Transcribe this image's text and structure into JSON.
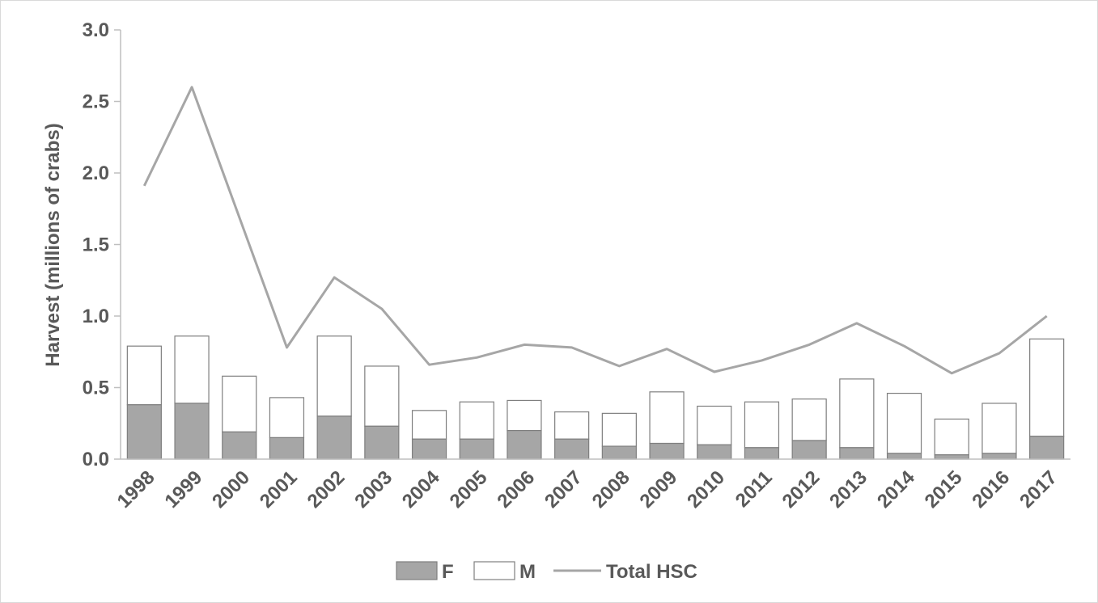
{
  "chart_data": {
    "type": "bar",
    "stacked": true,
    "title": "",
    "xlabel": "",
    "ylabel": "Harvest (millions of crabs)",
    "ylim": [
      0,
      3.0
    ],
    "yticks": [
      "0.0",
      "0.5",
      "1.0",
      "1.5",
      "2.0",
      "2.5",
      "3.0"
    ],
    "yticks_values": [
      0,
      0.5,
      1.0,
      1.5,
      2.0,
      2.5,
      3.0
    ],
    "grid": false,
    "legend_position": "bottom",
    "categories": [
      "1998",
      "1999",
      "2000",
      "2001",
      "2002",
      "2003",
      "2004",
      "2005",
      "2006",
      "2007",
      "2008",
      "2009",
      "2010",
      "2011",
      "2012",
      "2013",
      "2014",
      "2015",
      "2016",
      "2017"
    ],
    "series": [
      {
        "name": "F",
        "kind": "bar",
        "color": "#a6a6a6",
        "values": [
          0.38,
          0.39,
          0.19,
          0.15,
          0.3,
          0.23,
          0.14,
          0.14,
          0.2,
          0.14,
          0.09,
          0.11,
          0.1,
          0.08,
          0.13,
          0.08,
          0.04,
          0.03,
          0.04,
          0.16
        ]
      },
      {
        "name": "M",
        "kind": "bar",
        "color": "#ffffff",
        "values": [
          0.41,
          0.47,
          0.39,
          0.28,
          0.56,
          0.42,
          0.2,
          0.26,
          0.21,
          0.19,
          0.23,
          0.36,
          0.27,
          0.32,
          0.29,
          0.48,
          0.42,
          0.25,
          0.35,
          0.68
        ]
      },
      {
        "name": "Total HSC",
        "kind": "line",
        "color": "#a6a6a6",
        "values": [
          1.91,
          2.6,
          1.69,
          0.78,
          1.27,
          1.05,
          0.66,
          0.71,
          0.8,
          0.78,
          0.65,
          0.77,
          0.61,
          0.69,
          0.8,
          0.95,
          0.79,
          0.6,
          0.74,
          1.0
        ]
      }
    ],
    "colors": {
      "axis": "#bfbfbf",
      "text": "#595959",
      "bar_outline": "#7f7f7f"
    }
  }
}
